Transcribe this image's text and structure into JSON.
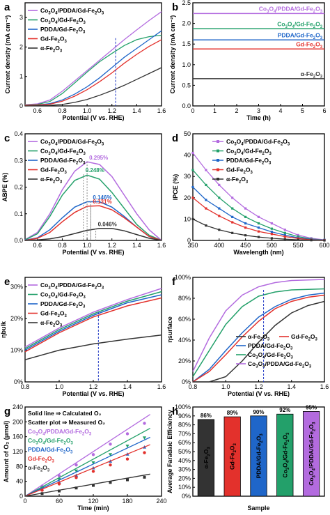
{
  "colors": {
    "Co3O4/PDDA/Gd-Fe2O3": "#b36bdf",
    "Co3O4/Gd-Fe2O3": "#23a06a",
    "PDDA/Gd-Fe2O3": "#1f66c9",
    "Gd-Fe2O3": "#e3312c",
    "α-Fe2O3": "#333333",
    "marker": "#2239c4"
  },
  "chart_data": [
    {
      "panel": "a",
      "type": "line",
      "xlabel": "Potential (V vs. RHE)",
      "ylabel": "Current density (mA cm⁻²)",
      "xlim": [
        0.5,
        1.6
      ],
      "ylim": [
        0,
        3.5
      ],
      "xticks": [
        "0.6",
        "0.8",
        "1.0",
        "1.2",
        "1.4",
        "1.6"
      ],
      "yticks": [
        "0",
        "1",
        "2",
        "3"
      ],
      "vline_x": 1.23,
      "legend_loc": "top-left",
      "series": [
        {
          "name": "Co3O4/PDDA/Gd-Fe2O3",
          "x": [
            0.5,
            0.6,
            0.7,
            0.8,
            0.9,
            1.0,
            1.1,
            1.2,
            1.3,
            1.4,
            1.5,
            1.6
          ],
          "y": [
            0.04,
            0.07,
            0.2,
            0.5,
            0.85,
            1.2,
            1.55,
            1.9,
            2.25,
            2.58,
            2.9,
            3.2
          ]
        },
        {
          "name": "Co3O4/Gd-Fe2O3",
          "x": [
            0.5,
            0.6,
            0.7,
            0.8,
            0.9,
            1.0,
            1.1,
            1.2,
            1.3,
            1.4,
            1.5,
            1.6
          ],
          "y": [
            0.03,
            0.05,
            0.15,
            0.42,
            0.78,
            1.15,
            1.5,
            1.78,
            2.05,
            2.25,
            2.35,
            2.4
          ]
        },
        {
          "name": "PDDA/Gd-Fe2O3",
          "x": [
            0.5,
            0.6,
            0.7,
            0.8,
            0.9,
            1.0,
            1.1,
            1.2,
            1.3,
            1.4,
            1.5,
            1.6
          ],
          "y": [
            0.02,
            0.03,
            0.08,
            0.2,
            0.4,
            0.65,
            0.95,
            1.3,
            1.65,
            1.95,
            2.25,
            2.55
          ]
        },
        {
          "name": "Gd-Fe2O3",
          "x": [
            0.5,
            0.6,
            0.7,
            0.8,
            0.9,
            1.0,
            1.1,
            1.2,
            1.3,
            1.4,
            1.5,
            1.6
          ],
          "y": [
            0.02,
            0.03,
            0.06,
            0.16,
            0.33,
            0.55,
            0.82,
            1.12,
            1.45,
            1.75,
            2.02,
            2.25
          ]
        },
        {
          "name": "α-Fe2O3",
          "x": [
            0.5,
            0.6,
            0.7,
            0.8,
            0.9,
            1.0,
            1.1,
            1.2,
            1.3,
            1.4,
            1.5,
            1.6
          ],
          "y": [
            0.0,
            0.01,
            0.02,
            0.05,
            0.12,
            0.22,
            0.36,
            0.52,
            0.7,
            0.9,
            1.1,
            1.3
          ]
        }
      ]
    },
    {
      "panel": "b",
      "type": "line",
      "xlabel": "Time (h)",
      "ylabel": "Current density (mA cm⁻²)",
      "xlim": [
        0,
        6
      ],
      "ylim": [
        0,
        2.5
      ],
      "xticks": [
        "0",
        "1",
        "2",
        "3",
        "4",
        "5",
        "6"
      ],
      "yticks": [
        "0.0",
        "0.5",
        "1.0",
        "1.5",
        "2.0",
        "2.5"
      ],
      "series": [
        {
          "name": "Co3O4/PDDA/Gd-Fe2O3",
          "x": [
            0,
            6
          ],
          "y": [
            2.24,
            2.24
          ]
        },
        {
          "name": "Co3O4/Gd-Fe2O3",
          "x": [
            0,
            6
          ],
          "y": [
            1.87,
            1.87
          ]
        },
        {
          "name": "PDDA/Gd-Fe2O3",
          "x": [
            0,
            6
          ],
          "y": [
            1.6,
            1.6
          ]
        },
        {
          "name": "Gd-Fe2O3",
          "x": [
            0,
            6
          ],
          "y": [
            1.38,
            1.38
          ]
        },
        {
          "name": "α-Fe2O3",
          "x": [
            0,
            6
          ],
          "y": [
            0.66,
            0.66
          ]
        }
      ]
    },
    {
      "panel": "c",
      "type": "line",
      "xlabel": "Potential (V vs. RHE)",
      "ylabel": "ABPE (%)",
      "xlim": [
        0.5,
        1.6
      ],
      "ylim": [
        0,
        0.4
      ],
      "xticks": [
        "0.6",
        "0.8",
        "1.0",
        "1.2",
        "1.4",
        "1.6"
      ],
      "yticks": [
        "0.0",
        "0.1",
        "0.2",
        "0.3",
        "0.4"
      ],
      "legend_loc": "top-left",
      "annotations": [
        {
          "series": "Co3O4/PDDA/Gd-Fe2O3",
          "x": 1.0,
          "value": 0.295,
          "text": "0.295%"
        },
        {
          "series": "Co3O4/Gd-Fe2O3",
          "x": 0.97,
          "value": 0.248,
          "text": "0.248%"
        },
        {
          "series": "PDDA/Gd-Fe2O3",
          "x": 1.03,
          "value": 0.146,
          "text": "0.146%"
        },
        {
          "series": "Gd-Fe2O3",
          "x": 1.03,
          "value": 0.131,
          "text": "0.131%"
        },
        {
          "series": "α-Fe2O3",
          "x": 1.07,
          "value": 0.046,
          "text": "0.046%"
        }
      ],
      "series": [
        {
          "name": "Co3O4/PDDA/Gd-Fe2O3",
          "x": [
            0.5,
            0.6,
            0.7,
            0.8,
            0.9,
            1.0,
            1.1,
            1.2,
            1.3,
            1.4,
            1.5,
            1.6
          ],
          "y": [
            0.003,
            0.03,
            0.1,
            0.19,
            0.26,
            0.295,
            0.285,
            0.24,
            0.17,
            0.1,
            0.04,
            0.0
          ]
        },
        {
          "name": "Co3O4/Gd-Fe2O3",
          "x": [
            0.5,
            0.6,
            0.7,
            0.8,
            0.9,
            1.0,
            1.1,
            1.2,
            1.3,
            1.4,
            1.5,
            1.6
          ],
          "y": [
            0.002,
            0.025,
            0.09,
            0.17,
            0.225,
            0.245,
            0.23,
            0.18,
            0.12,
            0.06,
            0.02,
            0.0
          ]
        },
        {
          "name": "PDDA/Gd-Fe2O3",
          "x": [
            0.5,
            0.6,
            0.7,
            0.8,
            0.9,
            1.0,
            1.1,
            1.2,
            1.3,
            1.4,
            1.5,
            1.6
          ],
          "y": [
            0.001,
            0.01,
            0.04,
            0.085,
            0.125,
            0.145,
            0.145,
            0.125,
            0.09,
            0.05,
            0.015,
            0.0
          ]
        },
        {
          "name": "Gd-Fe2O3",
          "x": [
            0.5,
            0.6,
            0.7,
            0.8,
            0.9,
            1.0,
            1.1,
            1.2,
            1.3,
            1.4,
            1.5,
            1.6
          ],
          "y": [
            0.0,
            0.008,
            0.03,
            0.07,
            0.105,
            0.128,
            0.13,
            0.115,
            0.085,
            0.05,
            0.015,
            0.0
          ]
        },
        {
          "name": "α-Fe2O3",
          "x": [
            0.5,
            0.6,
            0.7,
            0.8,
            0.9,
            1.0,
            1.1,
            1.2,
            1.3,
            1.4,
            1.5,
            1.6
          ],
          "y": [
            0.0,
            0.002,
            0.006,
            0.014,
            0.026,
            0.038,
            0.045,
            0.045,
            0.036,
            0.022,
            0.008,
            0.0
          ]
        }
      ]
    },
    {
      "panel": "d",
      "type": "line",
      "xlabel": "Wavelength (nm)",
      "ylabel": "IPCE (%)",
      "xlim": [
        350,
        600
      ],
      "ylim": [
        0,
        50
      ],
      "xticks": [
        "350",
        "400",
        "450",
        "500",
        "550",
        "600"
      ],
      "yticks": [
        "0",
        "10",
        "20",
        "30",
        "40",
        "50"
      ],
      "legend_loc": "top-right",
      "series": [
        {
          "name": "Co3O4/PDDA/Gd-Fe2O3",
          "x": [
            350,
            375,
            400,
            425,
            450,
            475,
            500,
            525,
            550,
            575,
            600
          ],
          "y": [
            41,
            33,
            26,
            20,
            15,
            11,
            8,
            5,
            2.5,
            1,
            0.3
          ]
        },
        {
          "name": "Co3O4/Gd-Fe2O3",
          "x": [
            350,
            375,
            400,
            425,
            450,
            475,
            500,
            525,
            550,
            575,
            600
          ],
          "y": [
            33,
            26,
            20,
            15,
            11,
            8,
            5.5,
            3.5,
            1.8,
            0.7,
            0.2
          ]
        },
        {
          "name": "PDDA/Gd-Fe2O3",
          "x": [
            350,
            375,
            400,
            425,
            450,
            475,
            500,
            525,
            550,
            575,
            600
          ],
          "y": [
            25,
            19,
            15,
            11,
            8,
            6,
            4,
            2.5,
            1.2,
            0.5,
            0.2
          ]
        },
        {
          "name": "Gd-Fe2O3",
          "x": [
            350,
            375,
            400,
            425,
            450,
            475,
            500,
            525,
            550,
            575,
            600
          ],
          "y": [
            20,
            15,
            11.5,
            8.5,
            6,
            4.2,
            3,
            1.8,
            0.9,
            0.3,
            0.1
          ]
        },
        {
          "name": "α-Fe2O3",
          "x": [
            350,
            375,
            400,
            425,
            450,
            475,
            500,
            525,
            550,
            575,
            600
          ],
          "y": [
            10,
            7,
            5,
            3.5,
            2.4,
            1.6,
            1,
            0.6,
            0.3,
            0.1,
            0.0
          ]
        }
      ]
    },
    {
      "panel": "e",
      "type": "line",
      "xlabel": "Potential (V vs. RHE)",
      "ylabel": "ηbulk",
      "xlim": [
        0.8,
        1.6
      ],
      "ylim": [
        0,
        0.33
      ],
      "xticks": [
        "0.8",
        "1.0",
        "1.2",
        "1.4",
        "1.6"
      ],
      "yticks": [
        "0%",
        "10%",
        "20%",
        "30%"
      ],
      "vline_x": 1.23,
      "legend_loc": "top-left",
      "series": [
        {
          "name": "Co3O4/PDDA/Gd-Fe2O3",
          "x": [
            0.8,
            1.0,
            1.2,
            1.4,
            1.6
          ],
          "y": [
            0.11,
            0.17,
            0.22,
            0.26,
            0.295
          ]
        },
        {
          "name": "Co3O4/Gd-Fe2O3",
          "x": [
            0.8,
            1.0,
            1.2,
            1.4,
            1.6
          ],
          "y": [
            0.105,
            0.165,
            0.215,
            0.255,
            0.285
          ]
        },
        {
          "name": "PDDA/Gd-Fe2O3",
          "x": [
            0.8,
            1.0,
            1.2,
            1.4,
            1.6
          ],
          "y": [
            0.1,
            0.16,
            0.21,
            0.25,
            0.275
          ]
        },
        {
          "name": "Gd-Fe2O3",
          "x": [
            0.8,
            1.0,
            1.2,
            1.4,
            1.6
          ],
          "y": [
            0.095,
            0.155,
            0.205,
            0.24,
            0.265
          ]
        },
        {
          "name": "α-Fe2O3",
          "x": [
            0.8,
            1.0,
            1.2,
            1.4,
            1.6
          ],
          "y": [
            0.07,
            0.1,
            0.12,
            0.135,
            0.148
          ]
        }
      ]
    },
    {
      "panel": "f",
      "type": "line",
      "xlabel": "Potential (V vs. RHE)",
      "ylabel": "ηsurface",
      "xlim": [
        0.8,
        1.6
      ],
      "ylim": [
        0,
        1.0
      ],
      "xticks": [
        "0.8",
        "1.0",
        "1.2",
        "1.4",
        "1.6"
      ],
      "yticks": [
        "0%",
        "20%",
        "40%",
        "60%",
        "80%",
        "100%"
      ],
      "vline_x": 1.23,
      "legend_loc": "bottom-right",
      "series": [
        {
          "name": "Co3O4/PDDA/Gd-Fe2O3",
          "x": [
            0.8,
            0.9,
            1.0,
            1.1,
            1.2,
            1.3,
            1.4,
            1.5,
            1.6
          ],
          "y": [
            0.1,
            0.42,
            0.68,
            0.83,
            0.91,
            0.95,
            0.97,
            0.975,
            0.98
          ]
        },
        {
          "name": "Co3O4/Gd-Fe2O3",
          "x": [
            0.8,
            0.9,
            1.0,
            1.1,
            1.2,
            1.3,
            1.4,
            1.5,
            1.6
          ],
          "y": [
            0.05,
            0.3,
            0.55,
            0.72,
            0.82,
            0.86,
            0.88,
            0.885,
            0.89
          ]
        },
        {
          "name": "PDDA/Gd-Fe2O3",
          "x": [
            0.8,
            0.9,
            1.0,
            1.1,
            1.2,
            1.3,
            1.4,
            1.5,
            1.6
          ],
          "y": [
            0.0,
            0.12,
            0.3,
            0.47,
            0.62,
            0.72,
            0.79,
            0.83,
            0.85
          ]
        },
        {
          "name": "Gd-Fe2O3",
          "x": [
            0.8,
            0.9,
            1.0,
            1.1,
            1.2,
            1.3,
            1.4,
            1.5,
            1.6
          ],
          "y": [
            0.0,
            0.1,
            0.26,
            0.43,
            0.58,
            0.7,
            0.77,
            0.81,
            0.83
          ]
        },
        {
          "name": "α-Fe2O3",
          "x": [
            0.8,
            0.9,
            1.0,
            1.1,
            1.2,
            1.3,
            1.4,
            1.5,
            1.6
          ],
          "y": [
            0.0,
            0.0,
            0.05,
            0.2,
            0.38,
            0.54,
            0.66,
            0.73,
            0.77
          ]
        }
      ]
    },
    {
      "panel": "g",
      "type": "scatter",
      "xlabel": "Time (min)",
      "ylabel": "Amount of O₂ (μmol)",
      "xlim": [
        0,
        240
      ],
      "ylim": [
        0,
        240
      ],
      "xticks": [
        "0",
        "60",
        "120",
        "180",
        "240"
      ],
      "yticks": [
        "0",
        "40",
        "80",
        "120",
        "160",
        "200",
        "240"
      ],
      "notes": [
        "Solid line ⇒ Calculated O₂",
        "Scatter plot ⇒ Measured O₂"
      ],
      "legend_loc": "top-left",
      "series": [
        {
          "name": "Co3O4/PDDA/Gd-Fe2O3",
          "marker": "circle",
          "line_slope": 1.0,
          "x": [
            30,
            60,
            90,
            120,
            150,
            180,
            210
          ],
          "y": [
            27,
            55,
            84,
            112,
            140,
            168,
            196
          ]
        },
        {
          "name": "Co3O4/Gd-Fe2O3",
          "marker": "triangle-down",
          "line_slope": 0.83,
          "x": [
            30,
            60,
            90,
            120,
            150,
            180,
            210
          ],
          "y": [
            22,
            45,
            68,
            90,
            112,
            135,
            157
          ]
        },
        {
          "name": "PDDA/Gd-Fe2O3",
          "marker": "triangle-up",
          "line_slope": 0.72,
          "x": [
            30,
            60,
            90,
            120,
            150,
            180,
            210
          ],
          "y": [
            18,
            38,
            56,
            76,
            94,
            113,
            132
          ]
        },
        {
          "name": "Gd-Fe2O3",
          "marker": "circle",
          "line_slope": 0.63,
          "x": [
            30,
            60,
            90,
            120,
            150,
            180,
            210
          ],
          "y": [
            16,
            33,
            50,
            67,
            84,
            100,
            117
          ]
        },
        {
          "name": "α-Fe2O3",
          "marker": "square",
          "line_slope": 0.27,
          "x": [
            30,
            60,
            90,
            120,
            150,
            180,
            210
          ],
          "y": [
            7,
            14,
            22,
            29,
            37,
            44,
            51
          ]
        }
      ]
    },
    {
      "panel": "h",
      "type": "bar",
      "xlabel": "Sample",
      "ylabel": "Average Faradaic Efficiency",
      "ylim": [
        0,
        1.0
      ],
      "yticks": [
        "0%",
        "10%",
        "20%",
        "30%",
        "40%",
        "50%",
        "60%",
        "70%",
        "80%",
        "90%",
        "100%"
      ],
      "categories": [
        "α-Fe2O3",
        "Gd-Fe2O3",
        "PDDA/Gd-Fe2O3",
        "Co3O4/Gd-Fe2O3",
        "Co3O4/PDDA/Gd-Fe2O3"
      ],
      "values": [
        0.86,
        0.89,
        0.9,
        0.92,
        0.95
      ],
      "value_labels": [
        "86%",
        "89%",
        "90%",
        "92%",
        "95%"
      ]
    }
  ]
}
